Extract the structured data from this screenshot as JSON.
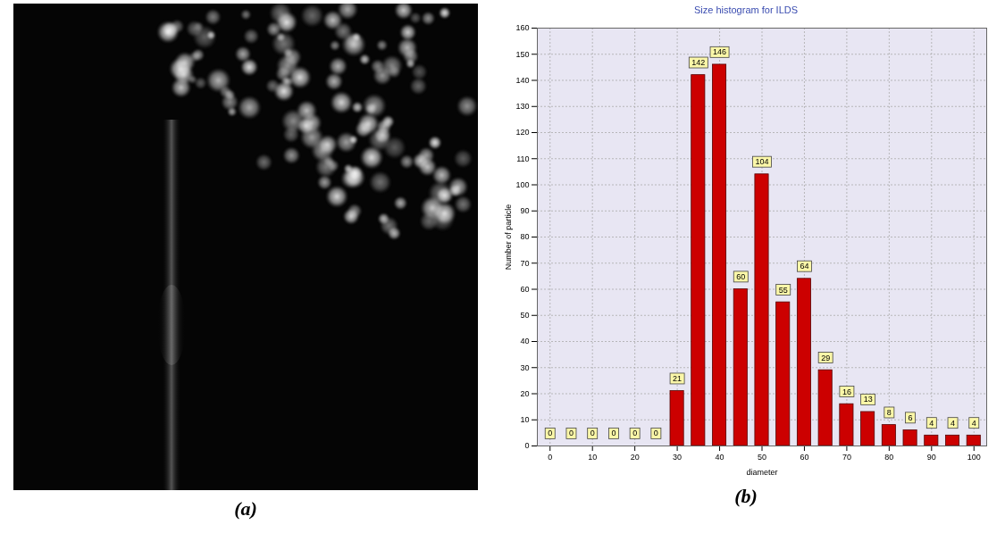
{
  "chart_data": {
    "type": "bar",
    "title": "Size histogram for ILDS",
    "panel_label": "(b)",
    "x_label": "diameter",
    "y_label": "Number of particle",
    "x": [
      0,
      5,
      10,
      15,
      20,
      25,
      30,
      35,
      40,
      45,
      50,
      55,
      60,
      65,
      70,
      75,
      80,
      85,
      90,
      95,
      100
    ],
    "values": [
      0,
      0,
      0,
      0,
      0,
      0,
      21,
      142,
      146,
      60,
      104,
      55,
      64,
      29,
      16,
      13,
      8,
      6,
      4,
      4,
      4
    ],
    "color": "#cc0000",
    "xlim": [
      -3,
      103
    ],
    "xticks": [
      0,
      10,
      20,
      30,
      40,
      50,
      60,
      70,
      80,
      90,
      100
    ],
    "ylim": [
      0,
      160
    ],
    "yticks": [
      0,
      10,
      20,
      30,
      40,
      50,
      60,
      70,
      80,
      90,
      100,
      110,
      120,
      130,
      140,
      150,
      160
    ],
    "grid": true,
    "data_labels": true
  },
  "image_panel": {
    "label": "(a)"
  }
}
